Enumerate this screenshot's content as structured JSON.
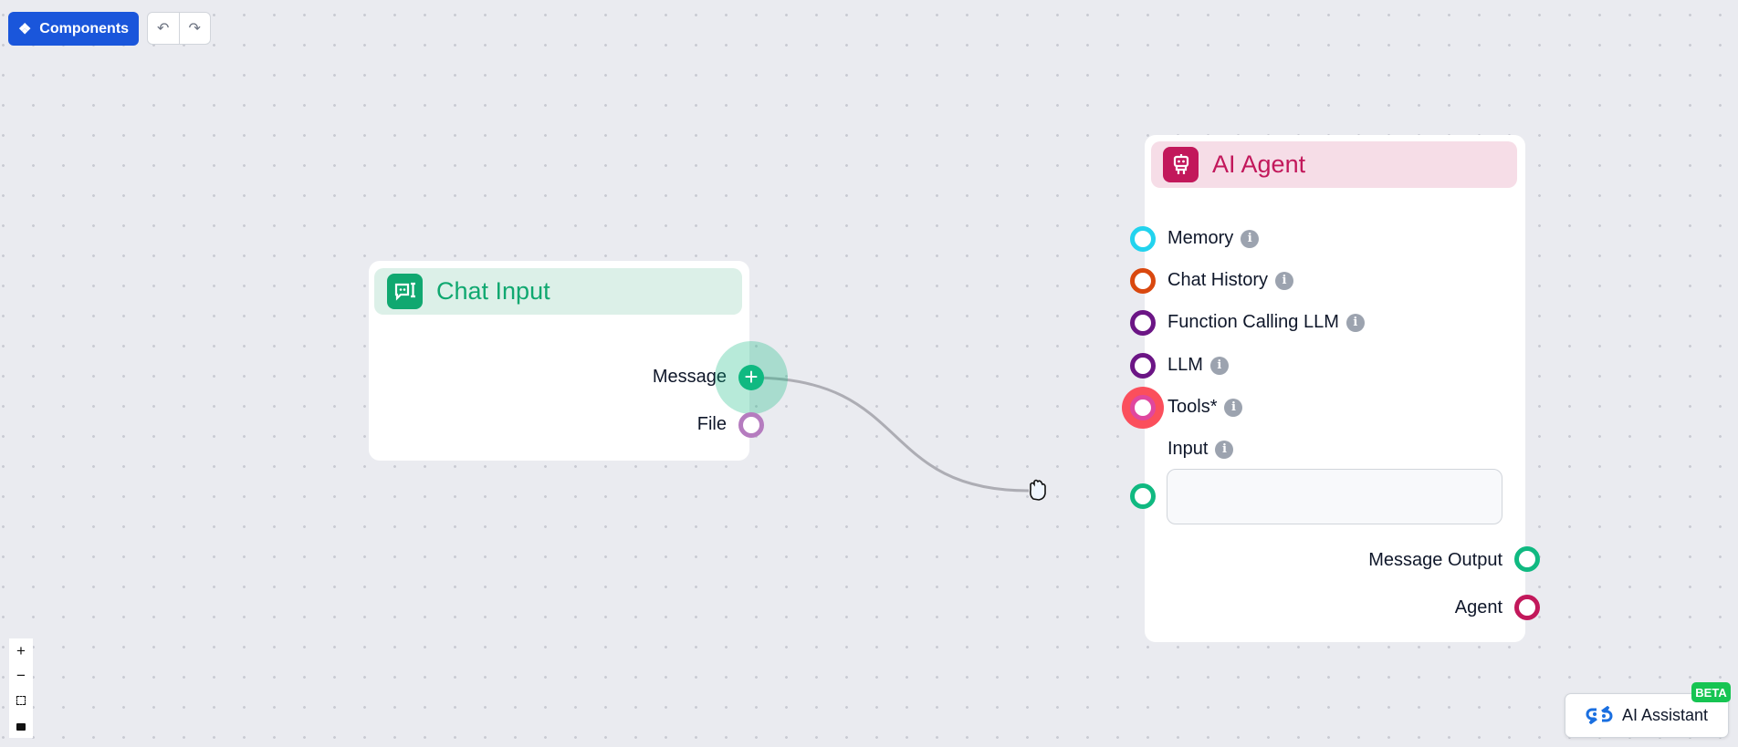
{
  "toolbar": {
    "components_label": "Components",
    "undo_icon": "undo-icon",
    "redo_icon": "redo-icon"
  },
  "chat_input": {
    "title": "Chat Input",
    "color": "#10a870",
    "outputs": [
      {
        "label": "Message",
        "color": "#10b981"
      },
      {
        "label": "File",
        "color": "#b57cbf"
      }
    ]
  },
  "ai_agent": {
    "title": "AI Agent",
    "color": "#c2185b",
    "inputs": [
      {
        "label": "Memory",
        "color": "#22d3ee"
      },
      {
        "label": "Chat History",
        "color": "#d9480f"
      },
      {
        "label": "Function Calling LLM",
        "color": "#6b1585"
      },
      {
        "label": "LLM",
        "color": "#6b1585"
      },
      {
        "label": "Tools*",
        "color": "#e0479e"
      },
      {
        "label": "Input",
        "color": "#10b981"
      }
    ],
    "input_value": "",
    "outputs": [
      {
        "label": "Message Output",
        "color": "#10b981"
      },
      {
        "label": "Agent",
        "color": "#c2185b"
      }
    ]
  },
  "zoom_controls": [
    "zoom-in",
    "zoom-out",
    "fit-view",
    "lock"
  ],
  "assistant": {
    "label": "AI Assistant",
    "badge": "BETA"
  }
}
